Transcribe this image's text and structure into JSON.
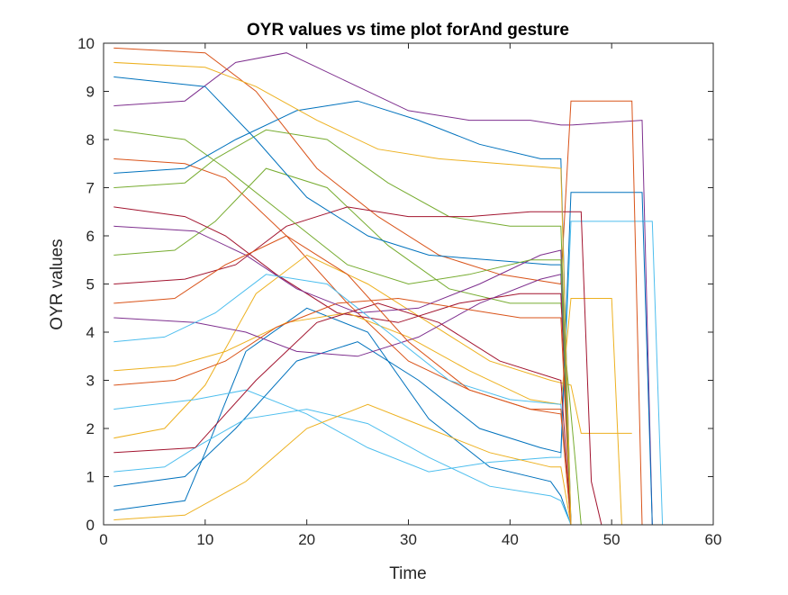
{
  "chart_data": {
    "type": "line",
    "title": "OYR values vs time plot forAnd gesture",
    "xlabel": "Time",
    "ylabel": "OYR values",
    "xlim": [
      0,
      60
    ],
    "ylim": [
      0,
      10
    ],
    "xticks": [
      "0",
      "10",
      "20",
      "30",
      "40",
      "50",
      "60"
    ],
    "yticks": [
      "0",
      "1",
      "2",
      "3",
      "4",
      "5",
      "6",
      "7",
      "8",
      "9",
      "10"
    ],
    "grid": false,
    "legend": "none",
    "series_count_note_free": true,
    "colors": [
      "#0072BD",
      "#D95319",
      "#EDB120",
      "#7E2F8E",
      "#77AC30",
      "#4DBEEE",
      "#A2142F"
    ],
    "series": [
      {
        "x": [
          1,
          8,
          10,
          14,
          20,
          26,
          32,
          38,
          44,
          45,
          46,
          55
        ],
        "values": [
          0.3,
          0.5,
          1.5,
          3.6,
          4.5,
          4.0,
          2.2,
          1.2,
          0.9,
          0.6,
          0,
          0
        ]
      },
      {
        "x": [
          1,
          8,
          12,
          18,
          24,
          30,
          36,
          42,
          45,
          46
        ],
        "values": [
          7.6,
          7.5,
          7.2,
          6.0,
          4.6,
          3.4,
          2.8,
          2.4,
          2.3,
          0
        ]
      },
      {
        "x": [
          1,
          6,
          10,
          15,
          20,
          26,
          32,
          38,
          44,
          46,
          47,
          52
        ],
        "values": [
          1.8,
          2.0,
          2.9,
          4.8,
          5.6,
          5.0,
          4.2,
          3.4,
          3.0,
          2.9,
          1.9,
          1.9
        ]
      },
      {
        "x": [
          1,
          8,
          13,
          18,
          24,
          30,
          36,
          42,
          45,
          46,
          53,
          54
        ],
        "values": [
          8.7,
          8.8,
          9.6,
          9.8,
          9.2,
          8.6,
          8.4,
          8.4,
          8.3,
          8.3,
          8.4,
          0
        ]
      },
      {
        "x": [
          1,
          7,
          11,
          16,
          22,
          28,
          34,
          40,
          45,
          47
        ],
        "values": [
          5.6,
          5.7,
          6.3,
          7.4,
          7.0,
          5.8,
          4.9,
          4.6,
          4.6,
          0
        ]
      },
      {
        "x": [
          1,
          9,
          14,
          20,
          26,
          32,
          38,
          44,
          45,
          46,
          54,
          55
        ],
        "values": [
          2.4,
          2.6,
          2.8,
          2.3,
          1.6,
          1.1,
          1.3,
          1.4,
          1.4,
          6.3,
          6.3,
          0
        ]
      },
      {
        "x": [
          1,
          8,
          12,
          17,
          23,
          29,
          35,
          41,
          45,
          46
        ],
        "values": [
          6.6,
          6.4,
          6.0,
          5.2,
          4.4,
          4.2,
          4.6,
          4.8,
          4.8,
          0
        ]
      },
      {
        "x": [
          1,
          8,
          13,
          19,
          25,
          31,
          37,
          43,
          45,
          46,
          53,
          54
        ],
        "values": [
          0.8,
          1.0,
          2.0,
          3.4,
          3.8,
          3.0,
          2.0,
          1.6,
          1.5,
          6.9,
          6.9,
          0
        ]
      },
      {
        "x": [
          1,
          10,
          15,
          21,
          27,
          33,
          39,
          45,
          46,
          52,
          53
        ],
        "values": [
          9.9,
          9.8,
          9.0,
          7.4,
          6.4,
          5.6,
          5.2,
          5.0,
          8.8,
          8.8,
          0
        ]
      },
      {
        "x": [
          1,
          7,
          12,
          18,
          24,
          30,
          36,
          42,
          45,
          46,
          50,
          51
        ],
        "values": [
          3.2,
          3.3,
          3.6,
          4.2,
          4.4,
          3.9,
          3.2,
          2.6,
          2.5,
          4.7,
          4.7,
          0
        ]
      },
      {
        "x": [
          1,
          9,
          14,
          19,
          25,
          31,
          37,
          43,
          45,
          46
        ],
        "values": [
          4.3,
          4.2,
          4.0,
          3.6,
          3.5,
          3.9,
          4.6,
          5.1,
          5.2,
          0
        ]
      },
      {
        "x": [
          1,
          8,
          11,
          16,
          22,
          28,
          34,
          40,
          45,
          46
        ],
        "values": [
          7.0,
          7.1,
          7.6,
          8.2,
          8.0,
          7.1,
          6.4,
          6.2,
          6.2,
          0
        ]
      },
      {
        "x": [
          1,
          6,
          9,
          14,
          20,
          26,
          32,
          38,
          44,
          45,
          46
        ],
        "values": [
          1.1,
          1.2,
          1.6,
          2.2,
          2.4,
          2.1,
          1.4,
          0.8,
          0.6,
          0.5,
          0
        ]
      },
      {
        "x": [
          1,
          8,
          13,
          18,
          24,
          30,
          36,
          42,
          45,
          47,
          48,
          49
        ],
        "values": [
          5.0,
          5.1,
          5.4,
          6.2,
          6.6,
          6.4,
          6.4,
          6.5,
          6.5,
          6.5,
          0.9,
          0
        ]
      },
      {
        "x": [
          1,
          10,
          15,
          20,
          26,
          32,
          38,
          44,
          45,
          46
        ],
        "values": [
          9.3,
          9.1,
          8.0,
          6.8,
          6.0,
          5.6,
          5.5,
          5.4,
          5.4,
          0
        ]
      },
      {
        "x": [
          1,
          7,
          12,
          17,
          23,
          29,
          35,
          41,
          45,
          46
        ],
        "values": [
          2.9,
          3.0,
          3.4,
          4.1,
          4.6,
          4.7,
          4.5,
          4.3,
          4.3,
          0
        ]
      },
      {
        "x": [
          1,
          8,
          14,
          20,
          26,
          32,
          38,
          44,
          45,
          46
        ],
        "values": [
          0.1,
          0.2,
          0.9,
          2.0,
          2.5,
          2.0,
          1.5,
          1.2,
          1.2,
          0
        ]
      },
      {
        "x": [
          1,
          9,
          14,
          19,
          25,
          31,
          37,
          43,
          45,
          46
        ],
        "values": [
          6.2,
          6.1,
          5.6,
          4.9,
          4.4,
          4.5,
          5.0,
          5.6,
          5.7,
          0
        ]
      },
      {
        "x": [
          1,
          8,
          12,
          18,
          24,
          30,
          36,
          42,
          45,
          46
        ],
        "values": [
          8.2,
          8.0,
          7.4,
          6.4,
          5.4,
          5.0,
          5.2,
          5.5,
          5.5,
          0
        ]
      },
      {
        "x": [
          1,
          6,
          11,
          16,
          22,
          28,
          34,
          40,
          45,
          46
        ],
        "values": [
          3.8,
          3.9,
          4.4,
          5.2,
          5.0,
          4.0,
          3.0,
          2.6,
          2.5,
          0
        ]
      },
      {
        "x": [
          1,
          9,
          15,
          21,
          27,
          33,
          39,
          45,
          46
        ],
        "values": [
          1.5,
          1.6,
          3.0,
          4.2,
          4.6,
          4.2,
          3.4,
          3.0,
          0
        ]
      },
      {
        "x": [
          1,
          8,
          13,
          19,
          25,
          31,
          37,
          43,
          45,
          46
        ],
        "values": [
          7.3,
          7.4,
          8.0,
          8.6,
          8.8,
          8.4,
          7.9,
          7.6,
          7.6,
          0
        ]
      },
      {
        "x": [
          1,
          7,
          12,
          18,
          24,
          30,
          36,
          42,
          45,
          46
        ],
        "values": [
          4.6,
          4.7,
          5.4,
          6.0,
          5.2,
          3.8,
          2.8,
          2.4,
          2.4,
          0
        ]
      },
      {
        "x": [
          1,
          10,
          15,
          21,
          27,
          33,
          39,
          45,
          46
        ],
        "values": [
          9.6,
          9.5,
          9.1,
          8.4,
          7.8,
          7.6,
          7.5,
          7.4,
          0
        ]
      }
    ]
  }
}
